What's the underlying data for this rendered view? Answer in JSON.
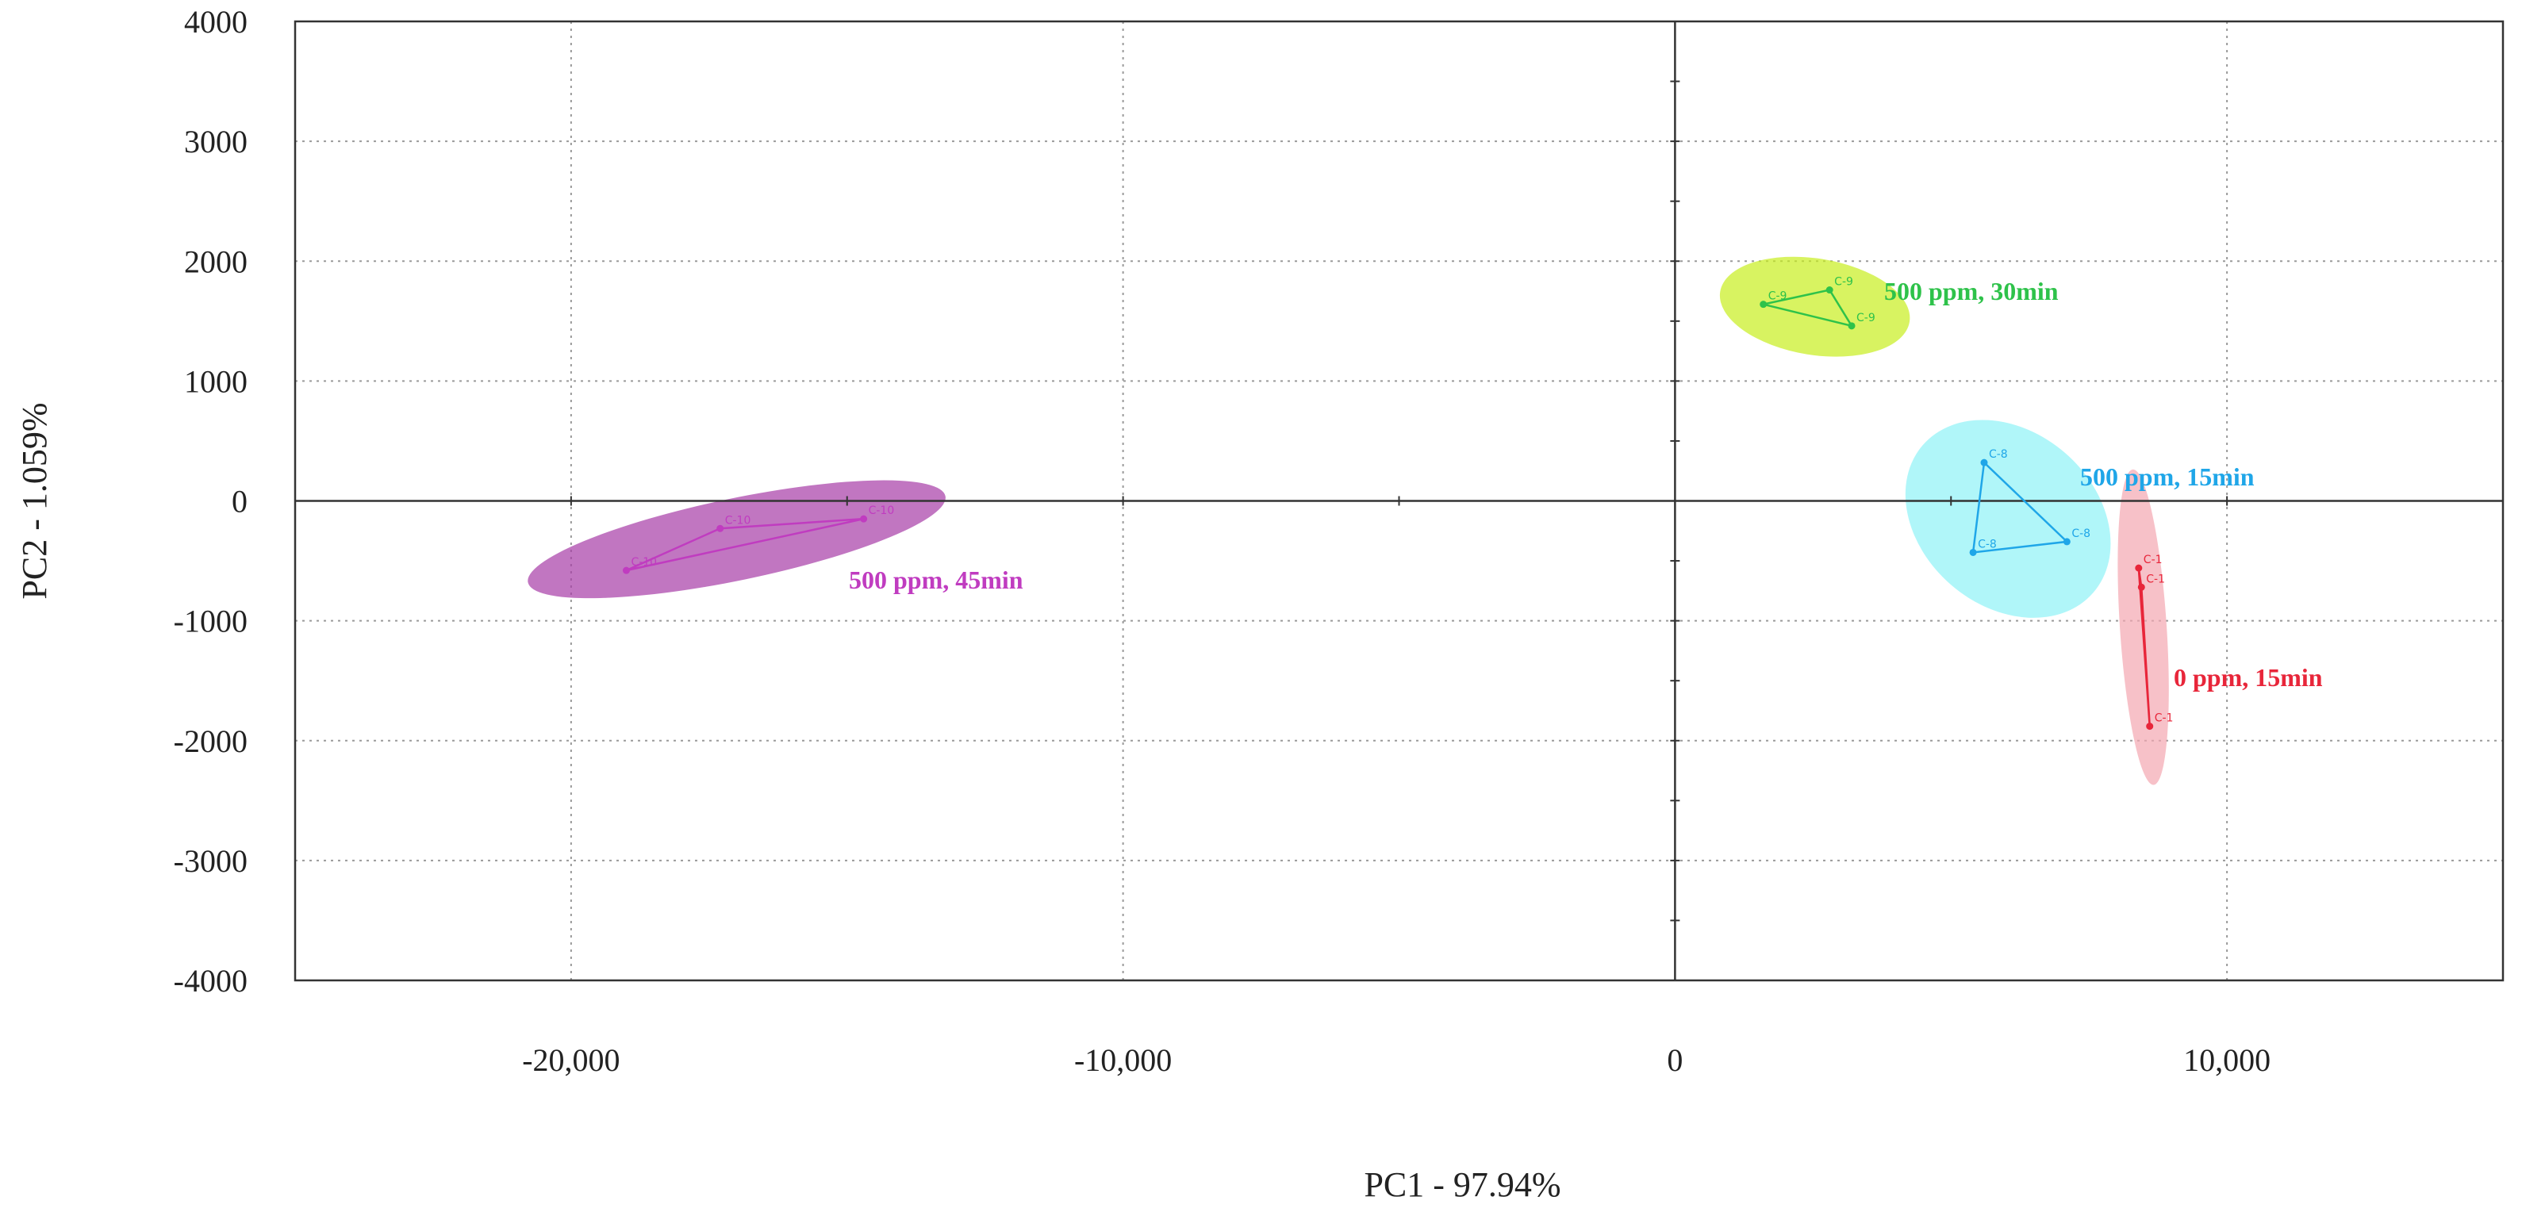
{
  "chart_data": {
    "type": "scatter",
    "title": "",
    "xlabel": "PC1 - 97.94%",
    "ylabel": "PC2 - 1.059%",
    "xlim": [
      -25000,
      15000
    ],
    "ylim": [
      -4000,
      4000
    ],
    "xticks": [
      {
        "value": -20000,
        "label": "-20,000"
      },
      {
        "value": -10000,
        "label": "-10,000"
      },
      {
        "value": 0,
        "label": "0"
      },
      {
        "value": 10000,
        "label": "10,000"
      }
    ],
    "yticks": [
      {
        "value": 4000,
        "label": "4000"
      },
      {
        "value": 3000,
        "label": "3000"
      },
      {
        "value": 2000,
        "label": "2000"
      },
      {
        "value": 1000,
        "label": "1000"
      },
      {
        "value": 0,
        "label": "0"
      },
      {
        "value": -1000,
        "label": "-1000"
      },
      {
        "value": -2000,
        "label": "-2000"
      },
      {
        "value": -3000,
        "label": "-3000"
      },
      {
        "value": -4000,
        "label": "-4000"
      }
    ],
    "grid": true,
    "series": [
      {
        "name": "500 ppm, 45min",
        "color": "#c03cc0",
        "fill": "#a63ca6",
        "points": [
          {
            "label": "C-10",
            "x": -19000,
            "y": -580
          },
          {
            "label": "C-10",
            "x": -17300,
            "y": -230
          },
          {
            "label": "C-10",
            "x": -14700,
            "y": -150
          }
        ]
      },
      {
        "name": "500 ppm, 30min",
        "color": "#2ec24a",
        "fill": "#c8ee1e",
        "points": [
          {
            "label": "C-9",
            "x": 1600,
            "y": 1640
          },
          {
            "label": "C-9",
            "x": 2800,
            "y": 1760
          },
          {
            "label": "C-9",
            "x": 3200,
            "y": 1460
          }
        ]
      },
      {
        "name": "500 ppm, 15min",
        "color": "#1fa6e8",
        "fill": "#8ef2f6",
        "points": [
          {
            "label": "C-8",
            "x": 5600,
            "y": 320
          },
          {
            "label": "C-8",
            "x": 5400,
            "y": -430
          },
          {
            "label": "C-8",
            "x": 7100,
            "y": -340
          }
        ]
      },
      {
        "name": "0 ppm, 15min",
        "color": "#e8263a",
        "fill": "#f4a6b0",
        "points": [
          {
            "label": "C-1",
            "x": 8400,
            "y": -560
          },
          {
            "label": "C-1",
            "x": 8450,
            "y": -720
          },
          {
            "label": "C-1",
            "x": 8600,
            "y": -1880
          }
        ]
      }
    ]
  }
}
